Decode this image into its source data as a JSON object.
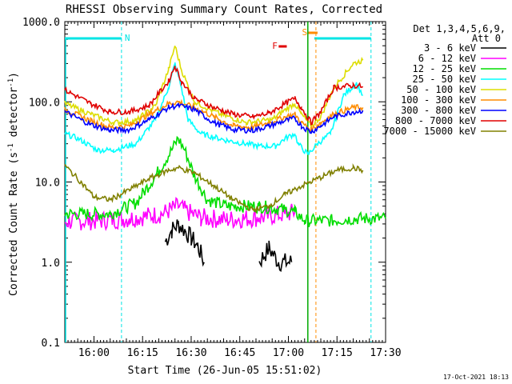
{
  "chart_data": {
    "type": "line",
    "title": "RHESSI Observing Summary Count Rates, Corrected",
    "xlabel": "Start Time (26-Jun-05 15:51:02)",
    "ylabel": "Corrected Count Rate (s",
    "ylabel_sup1": "-1",
    "ylabel_mid": " detector",
    "ylabel_sup2": "-1",
    "ylabel_end": ")",
    "yscale": "log",
    "ylim": [
      0.1,
      1000
    ],
    "xlim_minutes": [
      0,
      99
    ],
    "x_ticks": [
      {
        "label": "16:00",
        "min": 9
      },
      {
        "label": "16:15",
        "min": 24
      },
      {
        "label": "16:30",
        "min": 39
      },
      {
        "label": "16:45",
        "min": 54
      },
      {
        "label": "17:00",
        "min": 69
      },
      {
        "label": "17:15",
        "min": 84
      },
      {
        "label": "17:30",
        "min": 99
      }
    ],
    "y_ticks": [
      {
        "label": "1000.0",
        "v": 1000
      },
      {
        "label": "100.0",
        "v": 100
      },
      {
        "label": "10.0",
        "v": 10
      },
      {
        "label": "1.0",
        "v": 1
      },
      {
        "label": "0.1",
        "v": 0.1
      }
    ],
    "detectors": "Det 1,3,4,5,6,9,",
    "attenuator": "Att 0",
    "footer_date": "17-Oct-2021 18:13",
    "markers": {
      "night_label": "N",
      "saa_label": "S",
      "flare_label": "F",
      "night_color": "#00e5e5",
      "saa_color": "#ff8c00",
      "flare_color": "#e00000"
    },
    "series": [
      {
        "name": "3 - 6 keV",
        "color": "#000000",
        "points": [
          [
            0,
            null
          ],
          [
            27,
            null
          ],
          [
            31,
            1.8
          ],
          [
            33,
            2.5
          ],
          [
            35,
            3.0
          ],
          [
            37,
            2.5
          ],
          [
            39,
            2.0
          ],
          [
            41,
            1.6
          ],
          [
            43,
            1.0
          ],
          [
            48,
            null
          ],
          [
            55,
            null
          ],
          [
            60,
            1.0
          ],
          [
            63,
            1.5
          ],
          [
            66,
            1.0
          ],
          [
            70,
            1.0
          ],
          [
            72,
            null
          ]
        ]
      },
      {
        "name": "6 - 12 keV",
        "color": "#ff00ff",
        "points": [
          [
            0,
            3.2
          ],
          [
            10,
            3.3
          ],
          [
            20,
            3.5
          ],
          [
            30,
            4.0
          ],
          [
            35,
            5.0
          ],
          [
            38,
            4.2
          ],
          [
            42,
            3.6
          ],
          [
            50,
            3.4
          ],
          [
            60,
            3.6
          ],
          [
            68,
            4.0
          ],
          [
            71,
            4.2
          ],
          [
            73,
            null
          ]
        ]
      },
      {
        "name": "12 - 25 keV",
        "color": "#00dd00",
        "points": [
          [
            0,
            4.0
          ],
          [
            14,
            4.0
          ],
          [
            22,
            5.5
          ],
          [
            28,
            12
          ],
          [
            33,
            25
          ],
          [
            35,
            35
          ],
          [
            37,
            25
          ],
          [
            40,
            12
          ],
          [
            44,
            6
          ],
          [
            50,
            5
          ],
          [
            60,
            5
          ],
          [
            68,
            4.5
          ],
          [
            71,
            4.2
          ],
          [
            74,
            3.3
          ],
          [
            82,
            3.3
          ],
          [
            90,
            3.5
          ],
          [
            99,
            3.5
          ]
        ]
      },
      {
        "name": "25 - 50 keV",
        "color": "#00ffff",
        "points": [
          [
            0,
            40
          ],
          [
            4,
            35
          ],
          [
            10,
            25
          ],
          [
            15,
            25
          ],
          [
            22,
            30
          ],
          [
            28,
            60
          ],
          [
            32,
            150
          ],
          [
            34,
            300
          ],
          [
            36,
            150
          ],
          [
            38,
            60
          ],
          [
            42,
            40
          ],
          [
            50,
            33
          ],
          [
            60,
            28
          ],
          [
            65,
            28
          ],
          [
            68,
            35
          ],
          [
            71,
            40
          ],
          [
            72,
            30
          ],
          [
            75,
            22
          ],
          [
            78,
            30
          ],
          [
            82,
            40
          ],
          [
            86,
            120
          ],
          [
            90,
            170
          ],
          [
            92,
            120
          ],
          [
            94,
            null
          ]
        ]
      },
      {
        "name": "50 - 100 keV",
        "color": "#dddd00",
        "points": [
          [
            0,
            95
          ],
          [
            8,
            70
          ],
          [
            15,
            55
          ],
          [
            22,
            58
          ],
          [
            28,
            90
          ],
          [
            32,
            250
          ],
          [
            34,
            500
          ],
          [
            36,
            250
          ],
          [
            40,
            100
          ],
          [
            48,
            70
          ],
          [
            56,
            55
          ],
          [
            64,
            60
          ],
          [
            68,
            80
          ],
          [
            71,
            95
          ],
          [
            73,
            70
          ],
          [
            76,
            50
          ],
          [
            79,
            65
          ],
          [
            83,
            150
          ],
          [
            89,
            300
          ],
          [
            92,
            330
          ],
          [
            93,
            null
          ]
        ]
      },
      {
        "name": "100 - 300 keV",
        "color": "#ff8c00",
        "points": [
          [
            0,
            80
          ],
          [
            8,
            58
          ],
          [
            14,
            48
          ],
          [
            20,
            50
          ],
          [
            26,
            70
          ],
          [
            32,
            95
          ],
          [
            35,
            100
          ],
          [
            40,
            85
          ],
          [
            46,
            65
          ],
          [
            52,
            50
          ],
          [
            58,
            48
          ],
          [
            63,
            55
          ],
          [
            68,
            65
          ],
          [
            71,
            70
          ],
          [
            73,
            55
          ],
          [
            76,
            45
          ],
          [
            79,
            55
          ],
          [
            83,
            70
          ],
          [
            89,
            85
          ],
          [
            92,
            85
          ],
          [
            93,
            null
          ]
        ]
      },
      {
        "name": "300 - 800 keV",
        "color": "#0000ff",
        "points": [
          [
            0,
            75
          ],
          [
            8,
            52
          ],
          [
            14,
            44
          ],
          [
            20,
            45
          ],
          [
            26,
            60
          ],
          [
            32,
            85
          ],
          [
            35,
            90
          ],
          [
            40,
            80
          ],
          [
            46,
            55
          ],
          [
            52,
            45
          ],
          [
            58,
            44
          ],
          [
            63,
            50
          ],
          [
            68,
            58
          ],
          [
            71,
            62
          ],
          [
            73,
            50
          ],
          [
            76,
            42
          ],
          [
            79,
            50
          ],
          [
            83,
            65
          ],
          [
            89,
            75
          ],
          [
            92,
            78
          ],
          [
            93,
            null
          ]
        ]
      },
      {
        "name": "800 - 7000 keV",
        "color": "#e00000",
        "points": [
          [
            0,
            140
          ],
          [
            8,
            95
          ],
          [
            14,
            75
          ],
          [
            20,
            75
          ],
          [
            26,
            90
          ],
          [
            32,
            180
          ],
          [
            34,
            280
          ],
          [
            36,
            180
          ],
          [
            40,
            110
          ],
          [
            46,
            85
          ],
          [
            52,
            70
          ],
          [
            58,
            65
          ],
          [
            63,
            72
          ],
          [
            68,
            95
          ],
          [
            71,
            110
          ],
          [
            73,
            85
          ],
          [
            76,
            55
          ],
          [
            79,
            75
          ],
          [
            83,
            150
          ],
          [
            89,
            160
          ],
          [
            92,
            155
          ],
          [
            93,
            null
          ]
        ]
      },
      {
        "name": "7000 - 15000 keV",
        "color": "#808000",
        "points": [
          [
            0,
            16
          ],
          [
            5,
            10
          ],
          [
            9,
            6.5
          ],
          [
            14,
            6
          ],
          [
            20,
            8
          ],
          [
            26,
            11
          ],
          [
            32,
            14
          ],
          [
            35,
            15
          ],
          [
            40,
            13
          ],
          [
            46,
            9
          ],
          [
            52,
            6
          ],
          [
            58,
            4.5
          ],
          [
            63,
            5
          ],
          [
            68,
            7
          ],
          [
            72,
            8.5
          ],
          [
            78,
            11
          ],
          [
            84,
            14
          ],
          [
            89,
            15
          ],
          [
            92,
            14
          ],
          [
            93,
            null
          ]
        ]
      }
    ]
  }
}
